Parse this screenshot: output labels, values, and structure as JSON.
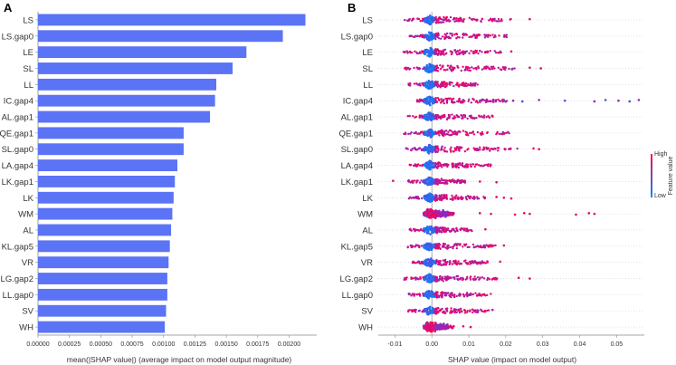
{
  "chart_data": [
    {
      "panel": "A",
      "type": "bar",
      "orientation": "horizontal",
      "color": "#5b73f5",
      "xlabel": "mean(|SHAP value|) (average impact on model output magnitude)",
      "xlim": [
        0,
        0.00222
      ],
      "xticks": [
        "0.00000",
        "0.00025",
        "0.00050",
        "0.00075",
        "0.00100",
        "0.00125",
        "0.00150",
        "0.00175",
        "0.00200"
      ],
      "xtick_values": [
        0,
        0.00025,
        0.0005,
        0.00075,
        0.001,
        0.00125,
        0.0015,
        0.00175,
        0.002
      ],
      "categories": [
        "LS",
        "LS.gap0",
        "LE",
        "SL",
        "LL",
        "IC.gap4",
        "AL.gap1",
        "QE.gap1",
        "SL.gap0",
        "LA.gap4",
        "LK.gap1",
        "LK",
        "WM",
        "AL",
        "KL.gap5",
        "VR",
        "LG.gap2",
        "LL.gap0",
        "SV",
        "WH"
      ],
      "values": [
        0.00213,
        0.00195,
        0.00166,
        0.00155,
        0.00142,
        0.00141,
        0.00137,
        0.00116,
        0.00116,
        0.00111,
        0.00109,
        0.00108,
        0.00107,
        0.00106,
        0.00105,
        0.00104,
        0.00103,
        0.00103,
        0.00102,
        0.00101
      ]
    },
    {
      "panel": "B",
      "type": "scatter",
      "subtype": "beeswarm",
      "xlabel": "SHAP value (impact on model output)",
      "xlim": [
        -0.0145,
        0.0575
      ],
      "xticks": [
        "-0.01",
        "0.00",
        "0.01",
        "0.02",
        "0.03",
        "0.04",
        "0.05"
      ],
      "xtick_values": [
        -0.01,
        0,
        0.01,
        0.02,
        0.03,
        0.04,
        0.05
      ],
      "colorbar": {
        "label": "Feature value",
        "high": "High",
        "low": "Low",
        "high_color": "#ff0052",
        "low_color": "#008bfb"
      },
      "features": [
        {
          "name": "LS",
          "min": -0.0075,
          "max": 0.0215,
          "outliers": [
            0.0265
          ]
        },
        {
          "name": "LS.gap0",
          "min": -0.006,
          "max": 0.0205,
          "outliers": []
        },
        {
          "name": "LE",
          "min": -0.008,
          "max": 0.0195,
          "outliers": [
            0.0215
          ]
        },
        {
          "name": "SL",
          "min": -0.0075,
          "max": 0.0235,
          "outliers": [
            0.0265,
            0.0295
          ]
        },
        {
          "name": "LL",
          "min": -0.0065,
          "max": 0.0125,
          "outliers": []
        },
        {
          "name": "IC.gap4",
          "min": -0.004,
          "max": 0.0205,
          "outliers": [
            0.0085,
            0.013,
            0.016,
            0.0195,
            0.022,
            0.0245,
            0.029,
            0.036,
            0.044,
            0.047,
            0.0505,
            0.0535,
            0.056
          ]
        },
        {
          "name": "AL.gap1",
          "min": -0.0065,
          "max": 0.0165,
          "outliers": []
        },
        {
          "name": "QE.gap1",
          "min": -0.0085,
          "max": 0.021,
          "outliers": []
        },
        {
          "name": "SL.gap0",
          "min": -0.0075,
          "max": 0.0235,
          "outliers": [
            0.0275,
            0.029
          ]
        },
        {
          "name": "LA.gap4",
          "min": -0.006,
          "max": 0.016,
          "outliers": []
        },
        {
          "name": "LK.gap1",
          "min": -0.0065,
          "max": 0.0095,
          "outliers": [
            -0.0105,
            0.013,
            0.0175
          ]
        },
        {
          "name": "LK",
          "min": -0.0065,
          "max": 0.0145,
          "outliers": [
            0.0175,
            0.0195,
            0.0215
          ]
        },
        {
          "name": "WM",
          "min": -0.002,
          "max": 0.006,
          "outliers": [
            0.013,
            0.016,
            0.0225,
            0.025,
            0.0265,
            0.039,
            0.0425,
            0.044
          ]
        },
        {
          "name": "AL",
          "min": -0.006,
          "max": 0.011,
          "outliers": [
            0.0145
          ]
        },
        {
          "name": "KL.gap5",
          "min": -0.0065,
          "max": 0.0175,
          "outliers": [
            0.0195
          ]
        },
        {
          "name": "VR",
          "min": -0.0055,
          "max": 0.0155,
          "outliers": [
            0.0185
          ]
        },
        {
          "name": "LG.gap2",
          "min": -0.0075,
          "max": 0.018,
          "outliers": [
            0.0235,
            0.0265
          ]
        },
        {
          "name": "LL.gap0",
          "min": -0.0075,
          "max": 0.016,
          "outliers": []
        },
        {
          "name": "SV",
          "min": -0.0065,
          "max": 0.0165,
          "outliers": []
        },
        {
          "name": "WH",
          "min": -0.002,
          "max": 0.006,
          "outliers": [
            0.0085,
            0.0105
          ]
        }
      ]
    }
  ]
}
